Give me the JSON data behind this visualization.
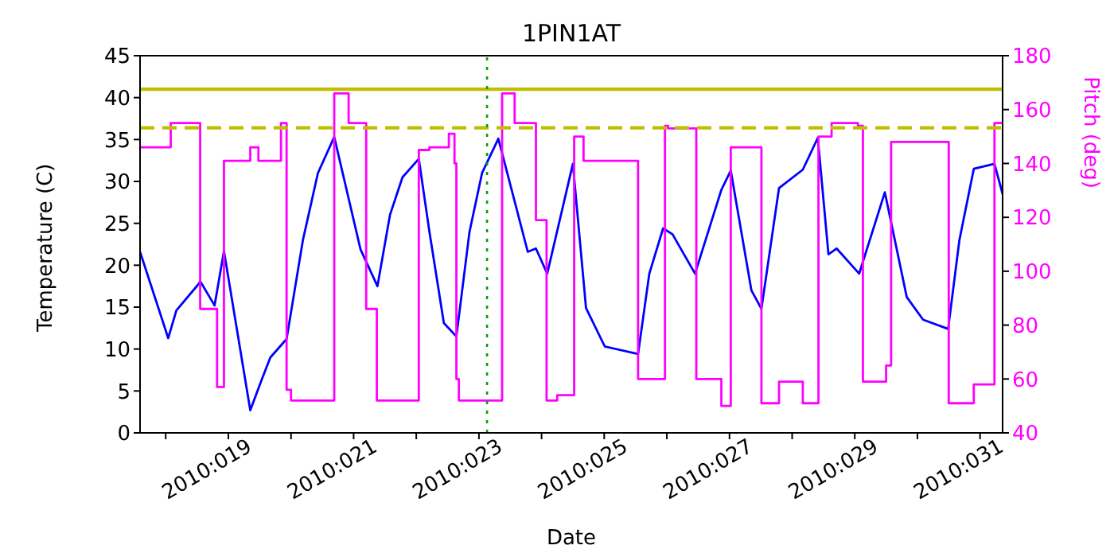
{
  "chart_data": {
    "type": "line",
    "title": "1PIN1AT",
    "xlabel": "Date",
    "ylabel": "Temperature (C)",
    "y2label": "Pitch (deg)",
    "xlim": [
      "2010-01-17T14:10",
      "2010-01-31T08:38"
    ],
    "xticks": [
      {
        "value": "2010-01-18",
        "label": null
      },
      {
        "value": "2010-01-19",
        "label": "2010:019"
      },
      {
        "value": "2010-01-20",
        "label": null
      },
      {
        "value": "2010-01-21",
        "label": "2010:021"
      },
      {
        "value": "2010-01-22",
        "label": null
      },
      {
        "value": "2010-01-23",
        "label": "2010:023"
      },
      {
        "value": "2010-01-24",
        "label": null
      },
      {
        "value": "2010-01-25",
        "label": "2010:025"
      },
      {
        "value": "2010-01-26",
        "label": null
      },
      {
        "value": "2010-01-27",
        "label": "2010:027"
      },
      {
        "value": "2010-01-28",
        "label": null
      },
      {
        "value": "2010-01-29",
        "label": "2010:029"
      },
      {
        "value": "2010-01-30",
        "label": null
      },
      {
        "value": "2010-01-31",
        "label": "2010:031"
      }
    ],
    "ylim": [
      0,
      45
    ],
    "yticks": [
      0,
      5,
      10,
      15,
      20,
      25,
      30,
      35,
      40,
      45
    ],
    "y2lim": [
      40,
      180
    ],
    "y2ticks": [
      40,
      60,
      80,
      100,
      120,
      140,
      160,
      180
    ],
    "series": [
      {
        "color": "#0000ff",
        "x": [
          "2010-01-17T14:10",
          "2010-01-18T00:58",
          "2010-01-18T04:05",
          "2010-01-18T12:43",
          "2010-01-18T13:12",
          "2010-01-18T18:43",
          "2010-01-18T22:19",
          "2010-01-19T08:24",
          "2010-01-19T12:58",
          "2010-01-19T16:05",
          "2010-01-19T22:19",
          "2010-01-20T04:34",
          "2010-01-20T10:19",
          "2010-01-20T16:34",
          "2010-01-21T02:38",
          "2010-01-21T09:07",
          "2010-01-21T13:55",
          "2010-01-21T18:43",
          "2010-01-22T00:58",
          "2010-01-22T05:02",
          "2010-01-22T10:34",
          "2010-01-22T15:22",
          "2010-01-22T20:24",
          "2010-01-23T01:12",
          "2010-01-23T07:26",
          "2010-01-23T18:43",
          "2010-01-23T21:50",
          "2010-01-24T02:10",
          "2010-01-24T12:00",
          "2010-01-24T17:02",
          "2010-01-25T00:14",
          "2010-01-25T12:58",
          "2010-01-25T17:17",
          "2010-01-25T22:34",
          "2010-01-26T02:10",
          "2010-01-26T10:48",
          "2010-01-26T20:53",
          "2010-01-27T00:29",
          "2010-01-27T08:24",
          "2010-01-27T12:14",
          "2010-01-27T18:58",
          "2010-01-28T04:05",
          "2010-01-28T09:50",
          "2010-01-28T13:55",
          "2010-01-28T17:02",
          "2010-01-29T01:41",
          "2010-01-29T11:31",
          "2010-01-29T19:55",
          "2010-01-30T02:10",
          "2010-01-30T11:46",
          "2010-01-30T16:05",
          "2010-01-30T21:36",
          "2010-01-31T05:31",
          "2010-01-31T08:38"
        ],
        "values": [
          21.6,
          11.3,
          14.6,
          17.8,
          18.1,
          15.2,
          21.7,
          2.7,
          6.5,
          9,
          11.2,
          23,
          31,
          35.3,
          21.9,
          17.5,
          26,
          30.5,
          32.7,
          24,
          13.1,
          11.5,
          24,
          31,
          35.1,
          21.6,
          22,
          19,
          32.1,
          14.9,
          10.3,
          9.4,
          19,
          24.4,
          23.7,
          19,
          29,
          31.3,
          17,
          14.8,
          29.2,
          31.4,
          35.2,
          21.3,
          22,
          19,
          28.7,
          16.2,
          13.5,
          12.4,
          23,
          31.5,
          32.1,
          28.5
        ]
      },
      {
        "type": "step",
        "axis": "y2",
        "color": "#ff00ff",
        "x": [
          "2010-01-17T14:10",
          "2010-01-18T01:55",
          "2010-01-18T13:12",
          "2010-01-18T19:41",
          "2010-01-18T22:19",
          "2010-01-19T08:24",
          "2010-01-19T11:31",
          "2010-01-19T20:10",
          "2010-01-19T22:19",
          "2010-01-20T00:00",
          "2010-01-20T16:34",
          "2010-01-20T22:05",
          "2010-01-21T04:48",
          "2010-01-21T08:53",
          "2010-01-22T00:58",
          "2010-01-22T05:02",
          "2010-01-22T12:29",
          "2010-01-22T14:38",
          "2010-01-22T15:22",
          "2010-01-22T16:19",
          "2010-01-23T08:53",
          "2010-01-23T13:41",
          "2010-01-23T21:50",
          "2010-01-24T01:55",
          "2010-01-24T06:00",
          "2010-01-24T12:29",
          "2010-01-24T16:05",
          "2010-01-25T12:58",
          "2010-01-25T23:17",
          "2010-01-26T00:29",
          "2010-01-26T11:17",
          "2010-01-26T20:53",
          "2010-01-27T00:29",
          "2010-01-27T12:14",
          "2010-01-27T18:58",
          "2010-01-28T04:05",
          "2010-01-28T10:05",
          "2010-01-28T15:07",
          "2010-01-29T01:12",
          "2010-01-29T03:07",
          "2010-01-29T12:00",
          "2010-01-29T13:55",
          "2010-01-30T12:00",
          "2010-01-30T21:36",
          "2010-01-31T05:31",
          "2010-01-31T08:38"
        ],
        "values": [
          146,
          155,
          86,
          57,
          141,
          146,
          141,
          155,
          56,
          52,
          166,
          155,
          86,
          52,
          145,
          146,
          151,
          140,
          60,
          52,
          166,
          155,
          119,
          52,
          54,
          150,
          141,
          60,
          154,
          153,
          60,
          50,
          146,
          51,
          59,
          51,
          150,
          155,
          154,
          59,
          65,
          148,
          51,
          58,
          155,
          155
        ]
      }
    ],
    "ref_lines": [
      {
        "axis": "y",
        "value": 41,
        "color": "#bfbf00",
        "line_style": "solid"
      },
      {
        "axis": "y",
        "value": 36.4,
        "color": "#bfbf00",
        "line_style": "dashed"
      },
      {
        "axis": "x",
        "value": "2010-01-23T03:07",
        "color": "#00a000",
        "line_style": "dotted"
      }
    ]
  }
}
